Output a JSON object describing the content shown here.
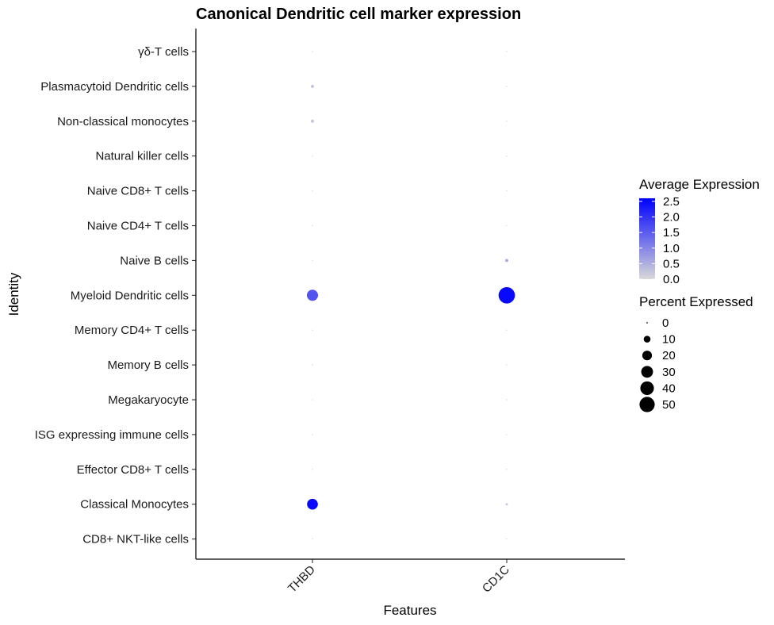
{
  "chart_data": {
    "type": "scatter",
    "subtype": "dotplot",
    "title": "Canonical Dendritic cell marker expression",
    "xlabel": "Features",
    "ylabel": "Identity",
    "features": [
      "THBD",
      "CD1C"
    ],
    "identities": [
      "γδ-T cells",
      "Plasmacytoid Dendritic cells",
      "Non-classical monocytes",
      "Natural killer  cells",
      "Naive CD8+ T cells",
      "Naive CD4+ T cells",
      "Naive B cells",
      "Myeloid Dendritic cells",
      "Memory CD4+ T cells",
      "Memory B cells",
      "Megakaryocyte",
      "ISG expressing immune cells",
      "Effector CD8+ T cells",
      "Classical Monocytes",
      "CD8+ NKT-like cells"
    ],
    "points": [
      {
        "identity": "γδ-T cells",
        "feature": "THBD",
        "avg_exp": 0.0,
        "pct_exp": 0.3
      },
      {
        "identity": "γδ-T cells",
        "feature": "CD1C",
        "avg_exp": 0.0,
        "pct_exp": 0.3
      },
      {
        "identity": "Plasmacytoid Dendritic cells",
        "feature": "THBD",
        "avg_exp": 0.3,
        "pct_exp": 2
      },
      {
        "identity": "Plasmacytoid Dendritic cells",
        "feature": "CD1C",
        "avg_exp": 0.0,
        "pct_exp": 0.3
      },
      {
        "identity": "Non-classical monocytes",
        "feature": "THBD",
        "avg_exp": 0.3,
        "pct_exp": 2
      },
      {
        "identity": "Non-classical monocytes",
        "feature": "CD1C",
        "avg_exp": 0.0,
        "pct_exp": 0.3
      },
      {
        "identity": "Natural killer  cells",
        "feature": "THBD",
        "avg_exp": 0.0,
        "pct_exp": 0.3
      },
      {
        "identity": "Natural killer  cells",
        "feature": "CD1C",
        "avg_exp": 0.0,
        "pct_exp": 0.3
      },
      {
        "identity": "Naive CD8+ T cells",
        "feature": "THBD",
        "avg_exp": 0.0,
        "pct_exp": 0.3
      },
      {
        "identity": "Naive CD8+ T cells",
        "feature": "CD1C",
        "avg_exp": 0.0,
        "pct_exp": 0.3
      },
      {
        "identity": "Naive CD4+ T cells",
        "feature": "THBD",
        "avg_exp": 0.0,
        "pct_exp": 0.3
      },
      {
        "identity": "Naive CD4+ T cells",
        "feature": "CD1C",
        "avg_exp": 0.0,
        "pct_exp": 0.3
      },
      {
        "identity": "Naive B cells",
        "feature": "THBD",
        "avg_exp": 0.0,
        "pct_exp": 0.3
      },
      {
        "identity": "Naive B cells",
        "feature": "CD1C",
        "avg_exp": 0.6,
        "pct_exp": 2
      },
      {
        "identity": "Myeloid Dendritic cells",
        "feature": "THBD",
        "avg_exp": 1.6,
        "pct_exp": 27
      },
      {
        "identity": "Myeloid Dendritic cells",
        "feature": "CD1C",
        "avg_exp": 2.5,
        "pct_exp": 58
      },
      {
        "identity": "Memory CD4+ T cells",
        "feature": "THBD",
        "avg_exp": 0.0,
        "pct_exp": 0.3
      },
      {
        "identity": "Memory CD4+ T cells",
        "feature": "CD1C",
        "avg_exp": 0.0,
        "pct_exp": 0.3
      },
      {
        "identity": "Memory B cells",
        "feature": "THBD",
        "avg_exp": 0.0,
        "pct_exp": 0.3
      },
      {
        "identity": "Memory B cells",
        "feature": "CD1C",
        "avg_exp": 0.0,
        "pct_exp": 0.3
      },
      {
        "identity": "Megakaryocyte",
        "feature": "THBD",
        "avg_exp": 0.0,
        "pct_exp": 0.3
      },
      {
        "identity": "Megakaryocyte",
        "feature": "CD1C",
        "avg_exp": 0.0,
        "pct_exp": 0.3
      },
      {
        "identity": "ISG expressing immune cells",
        "feature": "THBD",
        "avg_exp": 0.0,
        "pct_exp": 0.3
      },
      {
        "identity": "ISG expressing immune cells",
        "feature": "CD1C",
        "avg_exp": 0.0,
        "pct_exp": 0.3
      },
      {
        "identity": "Effector CD8+ T cells",
        "feature": "THBD",
        "avg_exp": 0.0,
        "pct_exp": 0.3
      },
      {
        "identity": "Effector CD8+ T cells",
        "feature": "CD1C",
        "avg_exp": 0.0,
        "pct_exp": 0.3
      },
      {
        "identity": "Classical Monocytes",
        "feature": "THBD",
        "avg_exp": 2.5,
        "pct_exp": 25
      },
      {
        "identity": "Classical Monocytes",
        "feature": "CD1C",
        "avg_exp": 0.3,
        "pct_exp": 1
      },
      {
        "identity": "CD8+ NKT-like cells",
        "feature": "THBD",
        "avg_exp": 0.0,
        "pct_exp": 0.3
      },
      {
        "identity": "CD8+ NKT-like cells",
        "feature": "CD1C",
        "avg_exp": 0.0,
        "pct_exp": 0.3
      }
    ],
    "color_legend": {
      "title": "Average Expression",
      "ticks": [
        "2.5",
        "2.0",
        "1.5",
        "1.0",
        "0.5",
        "0.0"
      ],
      "range": [
        0.0,
        2.6
      ],
      "low_color": "#d9d9d9",
      "high_color": "#0000ff"
    },
    "size_legend": {
      "title": "Percent Expressed",
      "values": [
        0,
        10,
        20,
        30,
        40,
        50
      ],
      "labels": [
        "0",
        "10",
        "20",
        "30",
        "40",
        "50"
      ]
    },
    "grid": false
  }
}
